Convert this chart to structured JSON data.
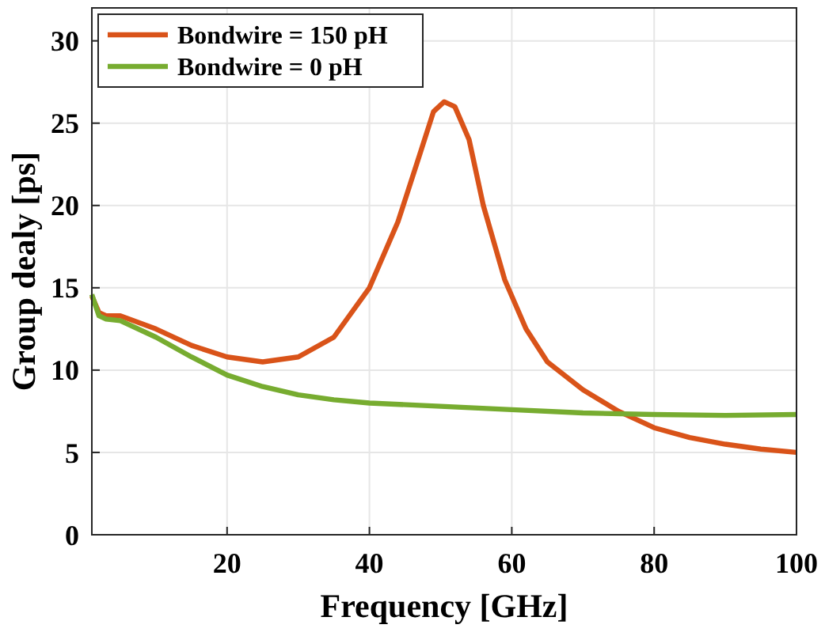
{
  "chart_data": {
    "type": "line",
    "xlabel": "Frequency [GHz]",
    "ylabel": "Group dealy [ps]",
    "xlim": [
      1,
      100
    ],
    "xticks": [
      20,
      40,
      60,
      80,
      100
    ],
    "ylim": [
      0,
      32
    ],
    "yticks": [
      0,
      5,
      10,
      15,
      20,
      25,
      30
    ],
    "grid": true,
    "legend": "top left",
    "line_style": "solid",
    "marker": "none",
    "series": [
      {
        "name": "Bondwire = 150 pH",
        "color": "#d95319",
        "x": [
          1,
          2,
          3,
          5,
          10,
          15,
          20,
          25,
          30,
          35,
          40,
          44,
          47,
          49,
          50.5,
          52,
          54,
          56,
          59,
          62,
          65,
          70,
          75,
          80,
          85,
          90,
          95,
          100
        ],
        "values": [
          14.5,
          13.5,
          13.3,
          13.3,
          12.5,
          11.5,
          10.8,
          10.5,
          10.8,
          12,
          15,
          19,
          23,
          25.7,
          26.3,
          26,
          24,
          20,
          15.5,
          12.5,
          10.5,
          8.8,
          7.5,
          6.5,
          5.9,
          5.5,
          5.2,
          5
        ]
      },
      {
        "name": "Bondwire = 0 pH",
        "color": "#77ac30",
        "x": [
          1,
          2,
          3,
          5,
          10,
          15,
          20,
          25,
          30,
          35,
          40,
          50,
          60,
          70,
          80,
          90,
          100
        ],
        "values": [
          14.6,
          13.3,
          13.1,
          13,
          12,
          10.8,
          9.7,
          9,
          8.5,
          8.2,
          8,
          7.8,
          7.6,
          7.4,
          7.3,
          7.25,
          7.3
        ]
      }
    ]
  }
}
